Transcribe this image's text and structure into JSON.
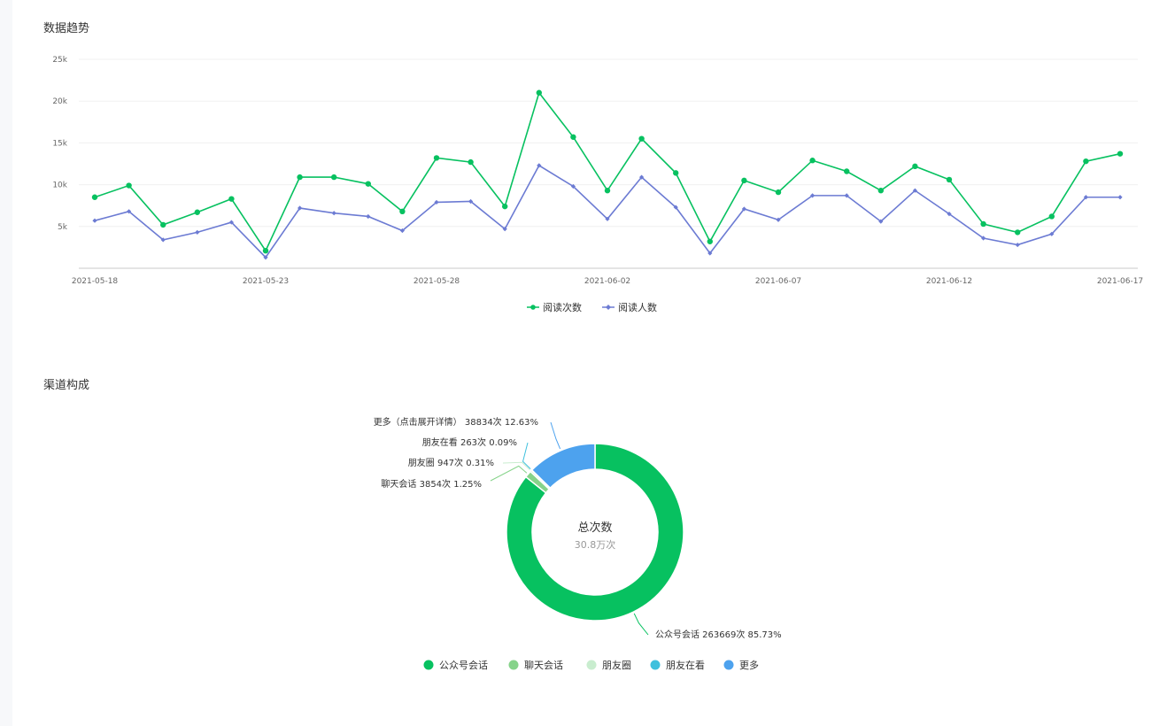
{
  "trend": {
    "title": "数据趋势"
  },
  "channel": {
    "title": "渠道构成",
    "center_title": "总次数",
    "center_value": "30.8万次"
  },
  "colors": {
    "series_reads": "#07c160",
    "series_users": "#6c7bd3",
    "pie": [
      "#07c160",
      "#86d38a",
      "#c9edcf",
      "#3fc0dd",
      "#4da2ee"
    ]
  },
  "chart_data": [
    {
      "type": "line",
      "title": "",
      "ylim": [
        0,
        25000
      ],
      "yticks": [
        "5k",
        "10k",
        "15k",
        "20k",
        "25k"
      ],
      "ytick_values": [
        5000,
        10000,
        15000,
        20000,
        25000
      ],
      "grid": true,
      "legend_position": "bottom-center",
      "x": [
        "2021-05-18",
        "2021-05-19",
        "2021-05-20",
        "2021-05-21",
        "2021-05-22",
        "2021-05-23",
        "2021-05-24",
        "2021-05-25",
        "2021-05-26",
        "2021-05-27",
        "2021-05-28",
        "2021-05-29",
        "2021-05-30",
        "2021-05-31",
        "2021-06-01",
        "2021-06-02",
        "2021-06-03",
        "2021-06-04",
        "2021-06-05",
        "2021-06-06",
        "2021-06-07",
        "2021-06-08",
        "2021-06-09",
        "2021-06-10",
        "2021-06-11",
        "2021-06-12",
        "2021-06-13",
        "2021-06-14",
        "2021-06-15",
        "2021-06-16",
        "2021-06-17"
      ],
      "x_tick_labels": [
        "2021-05-18",
        "2021-05-23",
        "2021-05-28",
        "2021-06-02",
        "2021-06-07",
        "2021-06-12",
        "2021-06-17"
      ],
      "series": [
        {
          "name": "阅读次数",
          "values": [
            8500,
            9900,
            5200,
            6700,
            8300,
            2100,
            10900,
            10900,
            10100,
            6800,
            13200,
            12700,
            7400,
            21000,
            15700,
            9300,
            15500,
            11400,
            3200,
            10500,
            9100,
            12900,
            11600,
            9300,
            12200,
            10600,
            5300,
            4300,
            6200,
            12800,
            13700
          ]
        },
        {
          "name": "阅读人数",
          "values": [
            5700,
            6800,
            3400,
            4300,
            5500,
            1300,
            7200,
            6600,
            6200,
            4500,
            7900,
            8000,
            4700,
            12300,
            9800,
            5900,
            10900,
            7300,
            1800,
            7100,
            5800,
            8700,
            8700,
            5600,
            9300,
            6500,
            3600,
            2800,
            4100,
            8500,
            8500
          ]
        }
      ]
    },
    {
      "type": "pie",
      "donut": true,
      "legend_position": "bottom-center",
      "slices": [
        {
          "name": "公众号会话",
          "label": "公众号会话 263669次 85.73%",
          "value": 263669,
          "percent": 85.73
        },
        {
          "name": "聊天会话",
          "label": "聊天会话 3854次 1.25%",
          "value": 3854,
          "percent": 1.25
        },
        {
          "name": "朋友圈",
          "label": "朋友圈 947次 0.31%",
          "value": 947,
          "percent": 0.31
        },
        {
          "name": "朋友在看",
          "label": "朋友在看 263次 0.09%",
          "value": 263,
          "percent": 0.09
        },
        {
          "name": "更多",
          "label": "更多（点击展开详情） 38834次 12.63%",
          "value": 38834,
          "percent": 12.63
        }
      ]
    }
  ]
}
